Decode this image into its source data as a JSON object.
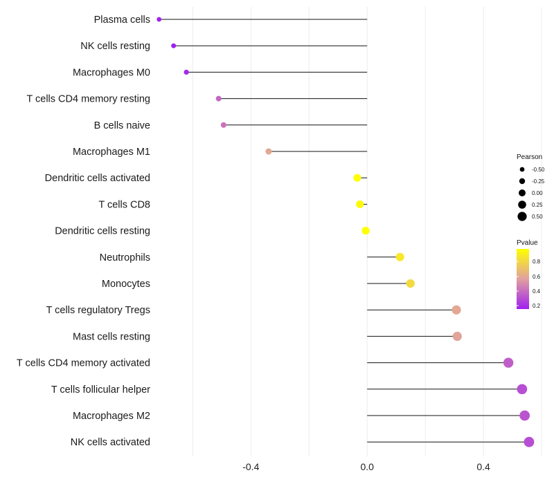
{
  "chart_data": {
    "type": "lollipop",
    "title": "",
    "xlabel": "",
    "ylabel": "",
    "xlim": [
      -0.72,
      0.6
    ],
    "x_ticks": [
      -0.4,
      0.0,
      0.4
    ],
    "x_tick_labels": [
      "-0.4",
      "0.0",
      "0.4"
    ],
    "grid": true,
    "categories": [
      "Plasma cells",
      "NK cells resting",
      "Macrophages M0",
      "T cells CD4 memory resting",
      "B cells naive",
      "Macrophages M1",
      "Dendritic cells activated",
      "T cells CD8",
      "Dendritic cells resting",
      "Neutrophils",
      "Monocytes",
      "T cells regulatory  Tregs",
      "Mast cells resting",
      "T cells CD4 memory activated",
      "T cells follicular helper",
      "Macrophages M2",
      "NK cells activated"
    ],
    "pearson": [
      -0.716,
      -0.666,
      -0.622,
      -0.511,
      -0.494,
      -0.339,
      -0.034,
      -0.025,
      -0.005,
      0.113,
      0.149,
      0.307,
      0.31,
      0.486,
      0.533,
      0.542,
      0.557
    ],
    "pvalue": [
      0.1,
      0.12,
      0.18,
      0.38,
      0.42,
      0.6,
      0.98,
      0.96,
      0.99,
      0.88,
      0.82,
      0.6,
      0.58,
      0.35,
      0.3,
      0.32,
      0.3
    ],
    "legend": {
      "size_title": "Pearson",
      "size_labels": [
        "-0.50",
        "-0.25",
        "0.00",
        "0.25",
        "0.50"
      ],
      "color_title": "Pvalue",
      "color_labels": [
        "0.8",
        "0.6",
        "0.4",
        "0.2"
      ],
      "color_low": "#a020f0",
      "color_mid": "#e0a0a0",
      "color_high": "#ffff00",
      "placement": "right"
    }
  }
}
